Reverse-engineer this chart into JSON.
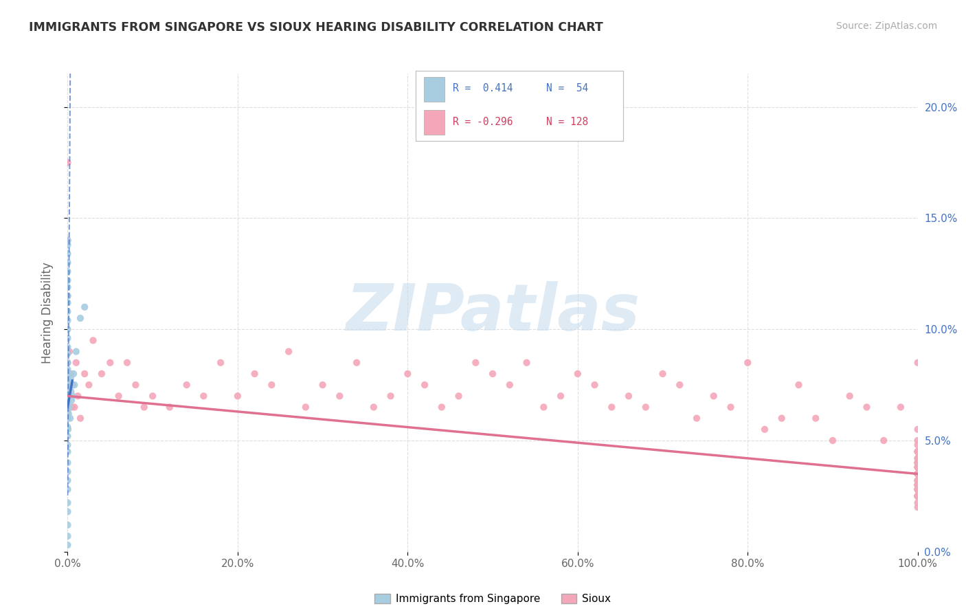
{
  "title": "IMMIGRANTS FROM SINGAPORE VS SIOUX HEARING DISABILITY CORRELATION CHART",
  "source": "Source: ZipAtlas.com",
  "xlabel": "",
  "ylabel": "Hearing Disability",
  "xlim": [
    0.0,
    100.0
  ],
  "ylim": [
    0.0,
    21.5
  ],
  "yticks": [
    0.0,
    5.0,
    10.0,
    15.0,
    20.0
  ],
  "xticks": [
    0.0,
    20.0,
    40.0,
    60.0,
    80.0,
    100.0
  ],
  "xtick_labels": [
    "0.0%",
    "20.0%",
    "40.0%",
    "60.0%",
    "80.0%",
    "100.0%"
  ],
  "ytick_labels": [
    "0.0%",
    "5.0%",
    "10.0%",
    "15.0%",
    "20.0%"
  ],
  "color_blue": "#a8cce0",
  "color_pink": "#f4a7b9",
  "color_blue_line": "#4472c4",
  "color_pink_line": "#e07090",
  "watermark": "ZIPatlas",
  "watermark_color": "#c8d8e8",
  "legend_labels": [
    "Immigrants from Singapore",
    "Sioux"
  ],
  "sg_trend_x0": 0.0,
  "sg_trend_y0": 6.5,
  "sg_trend_x1": 0.6,
  "sg_trend_y1": 7.8,
  "sg_trend_dashed_x0": 0.07,
  "sg_trend_dashed_y0": 6.9,
  "sg_trend_dashed_x1": 0.28,
  "sg_trend_dashed_y1": 20.0,
  "sx_trend_x0": 0.0,
  "sx_trend_y0": 7.0,
  "sx_trend_x1": 100.0,
  "sx_trend_y1": 3.5,
  "singapore_x": [
    0.0,
    0.0,
    0.0,
    0.0,
    0.0,
    0.0,
    0.0,
    0.0,
    0.0,
    0.0,
    0.0,
    0.0,
    0.0,
    0.0,
    0.0,
    0.0,
    0.0,
    0.0,
    0.0,
    0.0,
    0.0,
    0.0,
    0.0,
    0.0,
    0.0,
    0.0,
    0.0,
    0.0,
    0.0,
    0.0,
    0.0,
    0.0,
    0.0,
    0.0,
    0.0,
    0.0,
    0.05,
    0.08,
    0.1,
    0.12,
    0.15,
    0.2,
    0.25,
    0.3,
    0.35,
    0.4,
    0.45,
    0.5,
    0.6,
    0.7,
    0.8,
    1.0,
    1.5,
    2.0
  ],
  "singapore_y": [
    0.3,
    0.7,
    1.2,
    1.8,
    2.2,
    2.8,
    3.2,
    3.6,
    4.0,
    4.5,
    4.8,
    5.2,
    5.6,
    6.0,
    6.3,
    6.7,
    7.0,
    7.4,
    7.8,
    8.2,
    8.5,
    8.9,
    9.2,
    9.6,
    10.0,
    10.4,
    10.8,
    11.2,
    11.5,
    11.9,
    12.2,
    12.6,
    13.0,
    13.4,
    13.8,
    14.0,
    5.5,
    7.5,
    6.2,
    8.0,
    7.0,
    6.5,
    7.5,
    6.0,
    7.8,
    7.2,
    6.8,
    7.5,
    7.0,
    8.0,
    7.5,
    9.0,
    10.5,
    11.0
  ],
  "sioux_x": [
    0.0,
    0.0,
    0.0,
    0.0,
    0.0,
    0.0,
    0.0,
    0.0,
    0.2,
    0.3,
    0.4,
    0.5,
    0.6,
    0.8,
    1.0,
    1.2,
    1.5,
    2.0,
    2.5,
    3.0,
    4.0,
    5.0,
    6.0,
    7.0,
    8.0,
    9.0,
    10.0,
    12.0,
    14.0,
    16.0,
    18.0,
    20.0,
    22.0,
    24.0,
    26.0,
    28.0,
    30.0,
    32.0,
    34.0,
    36.0,
    38.0,
    40.0,
    42.0,
    44.0,
    46.0,
    48.0,
    50.0,
    52.0,
    54.0,
    56.0,
    58.0,
    60.0,
    62.0,
    64.0,
    66.0,
    68.0,
    70.0,
    72.0,
    74.0,
    76.0,
    78.0,
    80.0,
    82.0,
    84.0,
    86.0,
    88.0,
    90.0,
    92.0,
    94.0,
    96.0,
    98.0,
    100.0,
    100.0,
    100.0,
    100.0,
    100.0,
    100.0,
    100.0,
    100.0,
    100.0,
    100.0,
    100.0,
    100.0,
    100.0,
    100.0,
    100.0,
    100.0,
    100.0,
    100.0,
    100.0,
    100.0,
    100.0,
    100.0,
    100.0,
    100.0,
    100.0,
    100.0,
    100.0,
    100.0,
    100.0,
    100.0,
    100.0,
    100.0,
    100.0,
    100.0,
    100.0,
    100.0,
    100.0,
    100.0,
    100.0,
    100.0,
    100.0,
    100.0,
    100.0,
    100.0,
    100.0,
    100.0,
    100.0,
    100.0,
    100.0,
    100.0,
    100.0,
    100.0,
    100.0,
    100.0
  ],
  "sioux_y": [
    17.5,
    14.0,
    11.5,
    9.0,
    8.5,
    8.0,
    7.5,
    7.0,
    9.0,
    7.5,
    8.0,
    6.5,
    7.5,
    6.5,
    8.5,
    7.0,
    6.0,
    8.0,
    7.5,
    9.5,
    8.0,
    8.5,
    7.0,
    8.5,
    7.5,
    6.5,
    7.0,
    6.5,
    7.5,
    7.0,
    8.5,
    7.0,
    8.0,
    7.5,
    9.0,
    6.5,
    7.5,
    7.0,
    8.5,
    6.5,
    7.0,
    8.0,
    7.5,
    6.5,
    7.0,
    8.5,
    8.0,
    7.5,
    8.5,
    6.5,
    7.0,
    8.0,
    7.5,
    6.5,
    7.0,
    6.5,
    8.0,
    7.5,
    6.0,
    7.0,
    6.5,
    8.5,
    5.5,
    6.0,
    7.5,
    6.0,
    5.0,
    7.0,
    6.5,
    5.0,
    6.5,
    8.5,
    3.5,
    4.0,
    3.0,
    4.5,
    2.8,
    5.5,
    3.8,
    2.5,
    4.0,
    3.5,
    5.0,
    4.5,
    2.5,
    3.8,
    3.0,
    4.2,
    2.8,
    3.5,
    4.8,
    3.0,
    3.8,
    2.5,
    4.0,
    3.2,
    3.5,
    4.5,
    2.8,
    3.0,
    3.8,
    4.2,
    2.5,
    3.5,
    3.0,
    4.5,
    2.8,
    3.5,
    4.0,
    2.5,
    3.8,
    2.8,
    3.2,
    4.0,
    2.5,
    3.5,
    2.2,
    3.0,
    2.8,
    3.5,
    3.2,
    2.5,
    2.0,
    3.5,
    2.8
  ]
}
